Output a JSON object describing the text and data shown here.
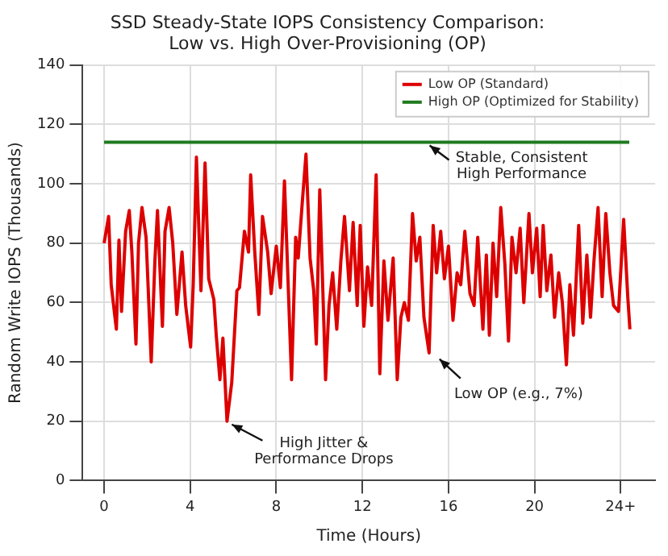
{
  "chart_data": {
    "type": "line",
    "title": "SSD Steady-State IOPS Consistency Comparison:\nLow vs. High Over-Provisioning (OP)",
    "xlabel": "Time (Hours)",
    "ylabel": "Random Write IOPS (Thousands)",
    "xlim": [
      -1,
      25.6
    ],
    "xticks": [
      0,
      4,
      8,
      12,
      16,
      20,
      {
        "value": 24,
        "label": "24+"
      }
    ],
    "ylim": [
      0,
      140
    ],
    "yticks": [
      0,
      20,
      40,
      60,
      80,
      100,
      120,
      140
    ],
    "grid": true,
    "legend": "top right",
    "marker": "none",
    "line_style": "solid",
    "series": [
      {
        "name": "Low OP (Standard)",
        "color": "#dd0000",
        "x": [
          0,
          0.21,
          0.33,
          0.57,
          0.69,
          0.81,
          1.0,
          1.17,
          1.29,
          1.48,
          1.6,
          1.76,
          1.95,
          2.19,
          2.36,
          2.48,
          2.71,
          2.83,
          3.02,
          3.19,
          3.38,
          3.62,
          3.79,
          4.02,
          4.14,
          4.29,
          4.5,
          4.69,
          4.86,
          5.1,
          5.21,
          5.38,
          5.52,
          5.71,
          5.93,
          6.17,
          6.29,
          6.52,
          6.71,
          6.81,
          7.0,
          7.19,
          7.36,
          7.6,
          7.76,
          8.0,
          8.19,
          8.38,
          8.71,
          8.9,
          9.02,
          9.19,
          9.38,
          9.57,
          9.74,
          9.86,
          10.02,
          10.29,
          10.45,
          10.62,
          10.81,
          11.0,
          11.17,
          11.4,
          11.57,
          11.76,
          11.9,
          12.07,
          12.24,
          12.43,
          12.64,
          12.81,
          13.0,
          13.19,
          13.43,
          13.62,
          13.79,
          13.95,
          14.14,
          14.33,
          14.5,
          14.67,
          14.86,
          15.1,
          15.29,
          15.45,
          15.64,
          15.81,
          16.0,
          16.21,
          16.4,
          16.57,
          16.76,
          17.0,
          17.19,
          17.36,
          17.6,
          17.76,
          17.9,
          18.07,
          18.24,
          18.43,
          18.62,
          18.79,
          18.95,
          19.14,
          19.33,
          19.5,
          19.74,
          19.9,
          20.1,
          20.26,
          20.4,
          20.57,
          20.76,
          20.93,
          21.12,
          21.29,
          21.48,
          21.64,
          21.81,
          22.05,
          22.24,
          22.43,
          22.6,
          22.76,
          22.95,
          23.14,
          23.31,
          23.5,
          23.67,
          23.9,
          24.14,
          24.33,
          24.43
        ],
        "values": [
          80,
          89,
          66,
          51,
          81,
          57,
          84,
          91,
          77,
          46,
          80,
          92,
          82,
          40,
          74,
          91,
          52,
          84,
          92,
          80,
          56,
          77,
          59,
          45,
          66,
          109,
          64,
          107,
          68,
          61,
          49,
          34,
          48,
          20,
          33,
          64,
          65,
          84,
          77,
          103,
          77,
          56,
          89,
          77,
          63,
          79,
          65,
          101,
          34,
          82,
          75,
          92,
          110,
          75,
          64,
          46,
          98,
          34,
          59,
          70,
          51,
          74,
          89,
          64,
          87,
          59,
          86,
          52,
          72,
          59,
          103,
          36,
          74,
          54,
          75,
          34,
          55,
          60,
          54,
          90,
          74,
          82,
          55,
          43,
          86,
          70,
          84,
          68,
          79,
          54,
          70,
          66,
          84,
          63,
          59,
          82,
          51,
          76,
          49,
          80,
          62,
          92,
          73,
          47,
          82,
          70,
          85,
          60,
          90,
          70,
          85,
          62,
          86,
          64,
          76,
          55,
          70,
          60,
          39,
          66,
          49,
          86,
          53,
          76,
          55,
          74,
          92,
          62,
          90,
          70,
          59,
          57,
          88,
          62,
          51
        ]
      },
      {
        "name": "High OP (Optimized for Stability)",
        "color": "#1e7a1e",
        "x": [
          0,
          24.4
        ],
        "values": [
          114,
          114
        ]
      }
    ],
    "annotations": [
      {
        "text": "High Jitter &\nPerformance Drops",
        "x": 5.71,
        "y": 20
      },
      {
        "text": "Stable, Consistent\nHigh Performance",
        "x": 14.9,
        "y": 114
      },
      {
        "text": "Low OP (e.g., 7%)",
        "x": 15.36,
        "y": 42
      }
    ]
  }
}
